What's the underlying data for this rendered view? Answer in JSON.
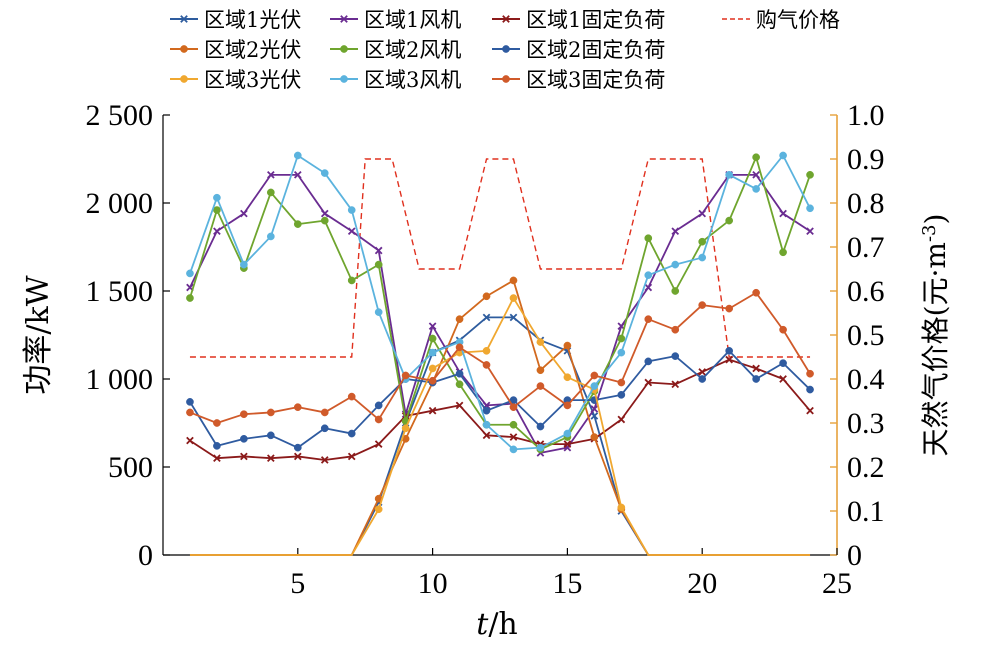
{
  "chart_data": {
    "type": "line",
    "xlabel_italic": "t",
    "xlabel_unit": "/h",
    "ylabel": "功率/kW",
    "y2label": "天然气价格(元·m",
    "y2label_sup": "-3",
    "y2label_close": ")",
    "xlim": [
      0,
      25
    ],
    "xticks": [
      5,
      10,
      15,
      20,
      25
    ],
    "ylim": [
      0,
      2500
    ],
    "yticks": [
      0,
      500,
      1000,
      1500,
      2000,
      2500
    ],
    "ytick_labels": [
      "0",
      "500",
      "1 000",
      "1 500",
      "2 000",
      "2 500"
    ],
    "y2lim": [
      0,
      1.0
    ],
    "y2ticks": [
      "0",
      "0.1",
      "0.2",
      "0.3",
      "0.4",
      "0.5",
      "0.6",
      "0.7",
      "0.8",
      "0.9",
      "1.0"
    ],
    "x": [
      1,
      2,
      3,
      4,
      5,
      6,
      7,
      8,
      9,
      10,
      11,
      12,
      13,
      14,
      15,
      16,
      17,
      18,
      19,
      20,
      21,
      22,
      23,
      24
    ],
    "series": [
      {
        "name": "区域1光伏",
        "color": "#2E5C9E",
        "marker": "x",
        "values": [
          0,
          0,
          0,
          0,
          0,
          0,
          0,
          300,
          750,
          1150,
          1220,
          1350,
          1350,
          1220,
          1160,
          790,
          250,
          0,
          0,
          0,
          0,
          0,
          0,
          0
        ]
      },
      {
        "name": "区域1风机",
        "color": "#6A2C91",
        "marker": "x",
        "values": [
          1520,
          1840,
          1940,
          2160,
          2160,
          1940,
          1840,
          1730,
          800,
          1300,
          1040,
          850,
          860,
          580,
          610,
          830,
          1300,
          1520,
          1840,
          1940,
          2160,
          2160,
          1940,
          1840
        ]
      },
      {
        "name": "区域1固定负荷",
        "color": "#8B1A1A",
        "marker": "x",
        "values": [
          650,
          550,
          560,
          550,
          560,
          540,
          560,
          630,
          790,
          820,
          850,
          680,
          670,
          630,
          630,
          660,
          770,
          980,
          970,
          1040,
          1110,
          1060,
          1000,
          820
        ]
      },
      {
        "name": "区域2光伏",
        "color": "#D2691E",
        "marker": "o",
        "values": [
          0,
          0,
          0,
          0,
          0,
          0,
          0,
          320,
          660,
          980,
          1340,
          1470,
          1560,
          1050,
          1190,
          670,
          260,
          0,
          0,
          0,
          0,
          0,
          0,
          0
        ]
      },
      {
        "name": "区域2风机",
        "color": "#6FA52E",
        "marker": "o",
        "values": [
          1460,
          1960,
          1630,
          2060,
          1880,
          1900,
          1560,
          1650,
          760,
          1230,
          970,
          740,
          740,
          600,
          670,
          930,
          1230,
          1800,
          1500,
          1780,
          1900,
          2260,
          1720,
          2160
        ]
      },
      {
        "name": "区域2固定负荷",
        "color": "#2F5BA0",
        "marker": "o",
        "values": [
          870,
          620,
          660,
          680,
          610,
          720,
          690,
          850,
          1000,
          980,
          1030,
          820,
          880,
          730,
          880,
          880,
          910,
          1100,
          1130,
          1000,
          1160,
          1000,
          1090,
          940
        ]
      },
      {
        "name": "区域3光伏",
        "color": "#F0A830",
        "marker": "o",
        "values": [
          0,
          0,
          0,
          0,
          0,
          0,
          0,
          260,
          720,
          1060,
          1150,
          1160,
          1460,
          1210,
          1010,
          940,
          270,
          0,
          0,
          0,
          0,
          0,
          0,
          0
        ]
      },
      {
        "name": "区域3风机",
        "color": "#5BB3DE",
        "marker": "o",
        "values": [
          1600,
          2030,
          1650,
          1810,
          2270,
          2170,
          1960,
          1380,
          1000,
          1150,
          1210,
          740,
          600,
          610,
          690,
          960,
          1150,
          1590,
          1650,
          1690,
          2160,
          2080,
          2270,
          1970
        ]
      },
      {
        "name": "区域3固定负荷",
        "color": "#D05A2A",
        "marker": "o",
        "values": [
          810,
          750,
          800,
          810,
          840,
          810,
          900,
          770,
          1020,
          990,
          1180,
          1080,
          840,
          960,
          850,
          1020,
          980,
          1340,
          1280,
          1420,
          1400,
          1490,
          1280,
          1030
        ]
      }
    ],
    "price_series": {
      "name": "购气价格",
      "color": "#E0301E",
      "dash": "6,4",
      "points": [
        [
          1,
          0.45
        ],
        [
          7,
          0.45
        ],
        [
          7.5,
          0.9
        ],
        [
          8.5,
          0.9
        ],
        [
          9.5,
          0.65
        ],
        [
          10,
          0.65
        ],
        [
          11,
          0.65
        ],
        [
          12,
          0.9
        ],
        [
          13,
          0.9
        ],
        [
          14,
          0.65
        ],
        [
          15,
          0.65
        ],
        [
          16,
          0.65
        ],
        [
          17,
          0.65
        ],
        [
          18,
          0.9
        ],
        [
          19,
          0.9
        ],
        [
          20,
          0.9
        ],
        [
          21,
          0.45
        ],
        [
          24,
          0.45
        ]
      ]
    },
    "legend": {
      "placement": "top",
      "columns": 4
    }
  }
}
